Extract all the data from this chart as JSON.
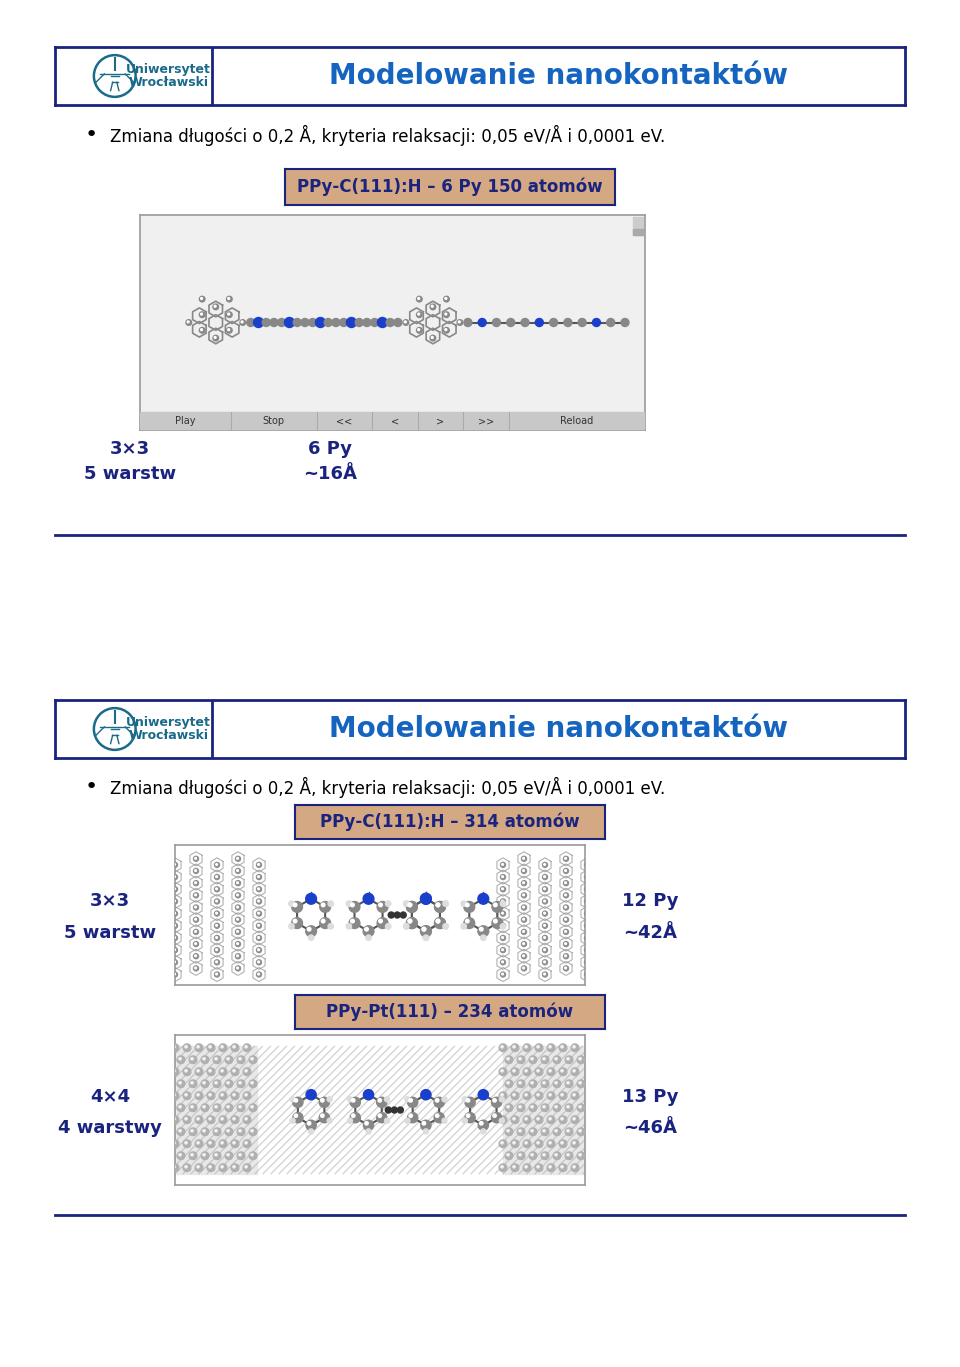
{
  "slide_bg": "#ffffff",
  "header_border_color": "#1a237e",
  "header_bg": "#ffffff",
  "header_title": "Modelowanie nanokontaktów",
  "header_title_color": "#1565c0",
  "header_title_fontsize": 20,
  "uni_text_color": "#1a6b8a",
  "uni_name1": "Uniwersytet",
  "uni_name2": "Wrocławski",
  "bullet_text": "Zmiana długości o 0,2 Å, kryteria relaksacji: 0,05 eV/Å i 0,0001 eV.",
  "label_bg": "#d4a882",
  "label_text_color": "#1a237e",
  "slide1_label": "PPy-C(111):H – 6 Py 150 atomów",
  "slide1_box1_text1": "3×3",
  "slide1_box1_text2": "5 warstw",
  "slide1_box2_text1": "6 Py",
  "slide1_box2_text2": "~16Å",
  "slide2_label1": "PPy-C(111):H – 314 atomów",
  "slide2_box1_text1": "3×3",
  "slide2_box1_text2": "5 warstw",
  "slide2_box2_text1": "12 Py",
  "slide2_box2_text2": "~42Å",
  "slide2_label2": "PPy-Pt(111) – 234 atomów",
  "slide2_box3_text1": "4×4",
  "slide2_box3_text2": "4 warstwy",
  "slide2_box4_text1": "13 Py",
  "slide2_box4_text2": "~46Å",
  "box_bg": "#b0d4e8",
  "box_text_color": "#1a237e",
  "divider_color": "#1a237e",
  "image_border_color": "#999999",
  "mol_gray": "#888888",
  "mol_blue": "#1a3fcc",
  "mol_light": "#cccccc",
  "mol_white": "#f0f0f0",
  "jmol_bg": "#d8d8d8",
  "slide1_img_bg": "#f5f5f5",
  "slide2_img_bg": "#ffffff"
}
